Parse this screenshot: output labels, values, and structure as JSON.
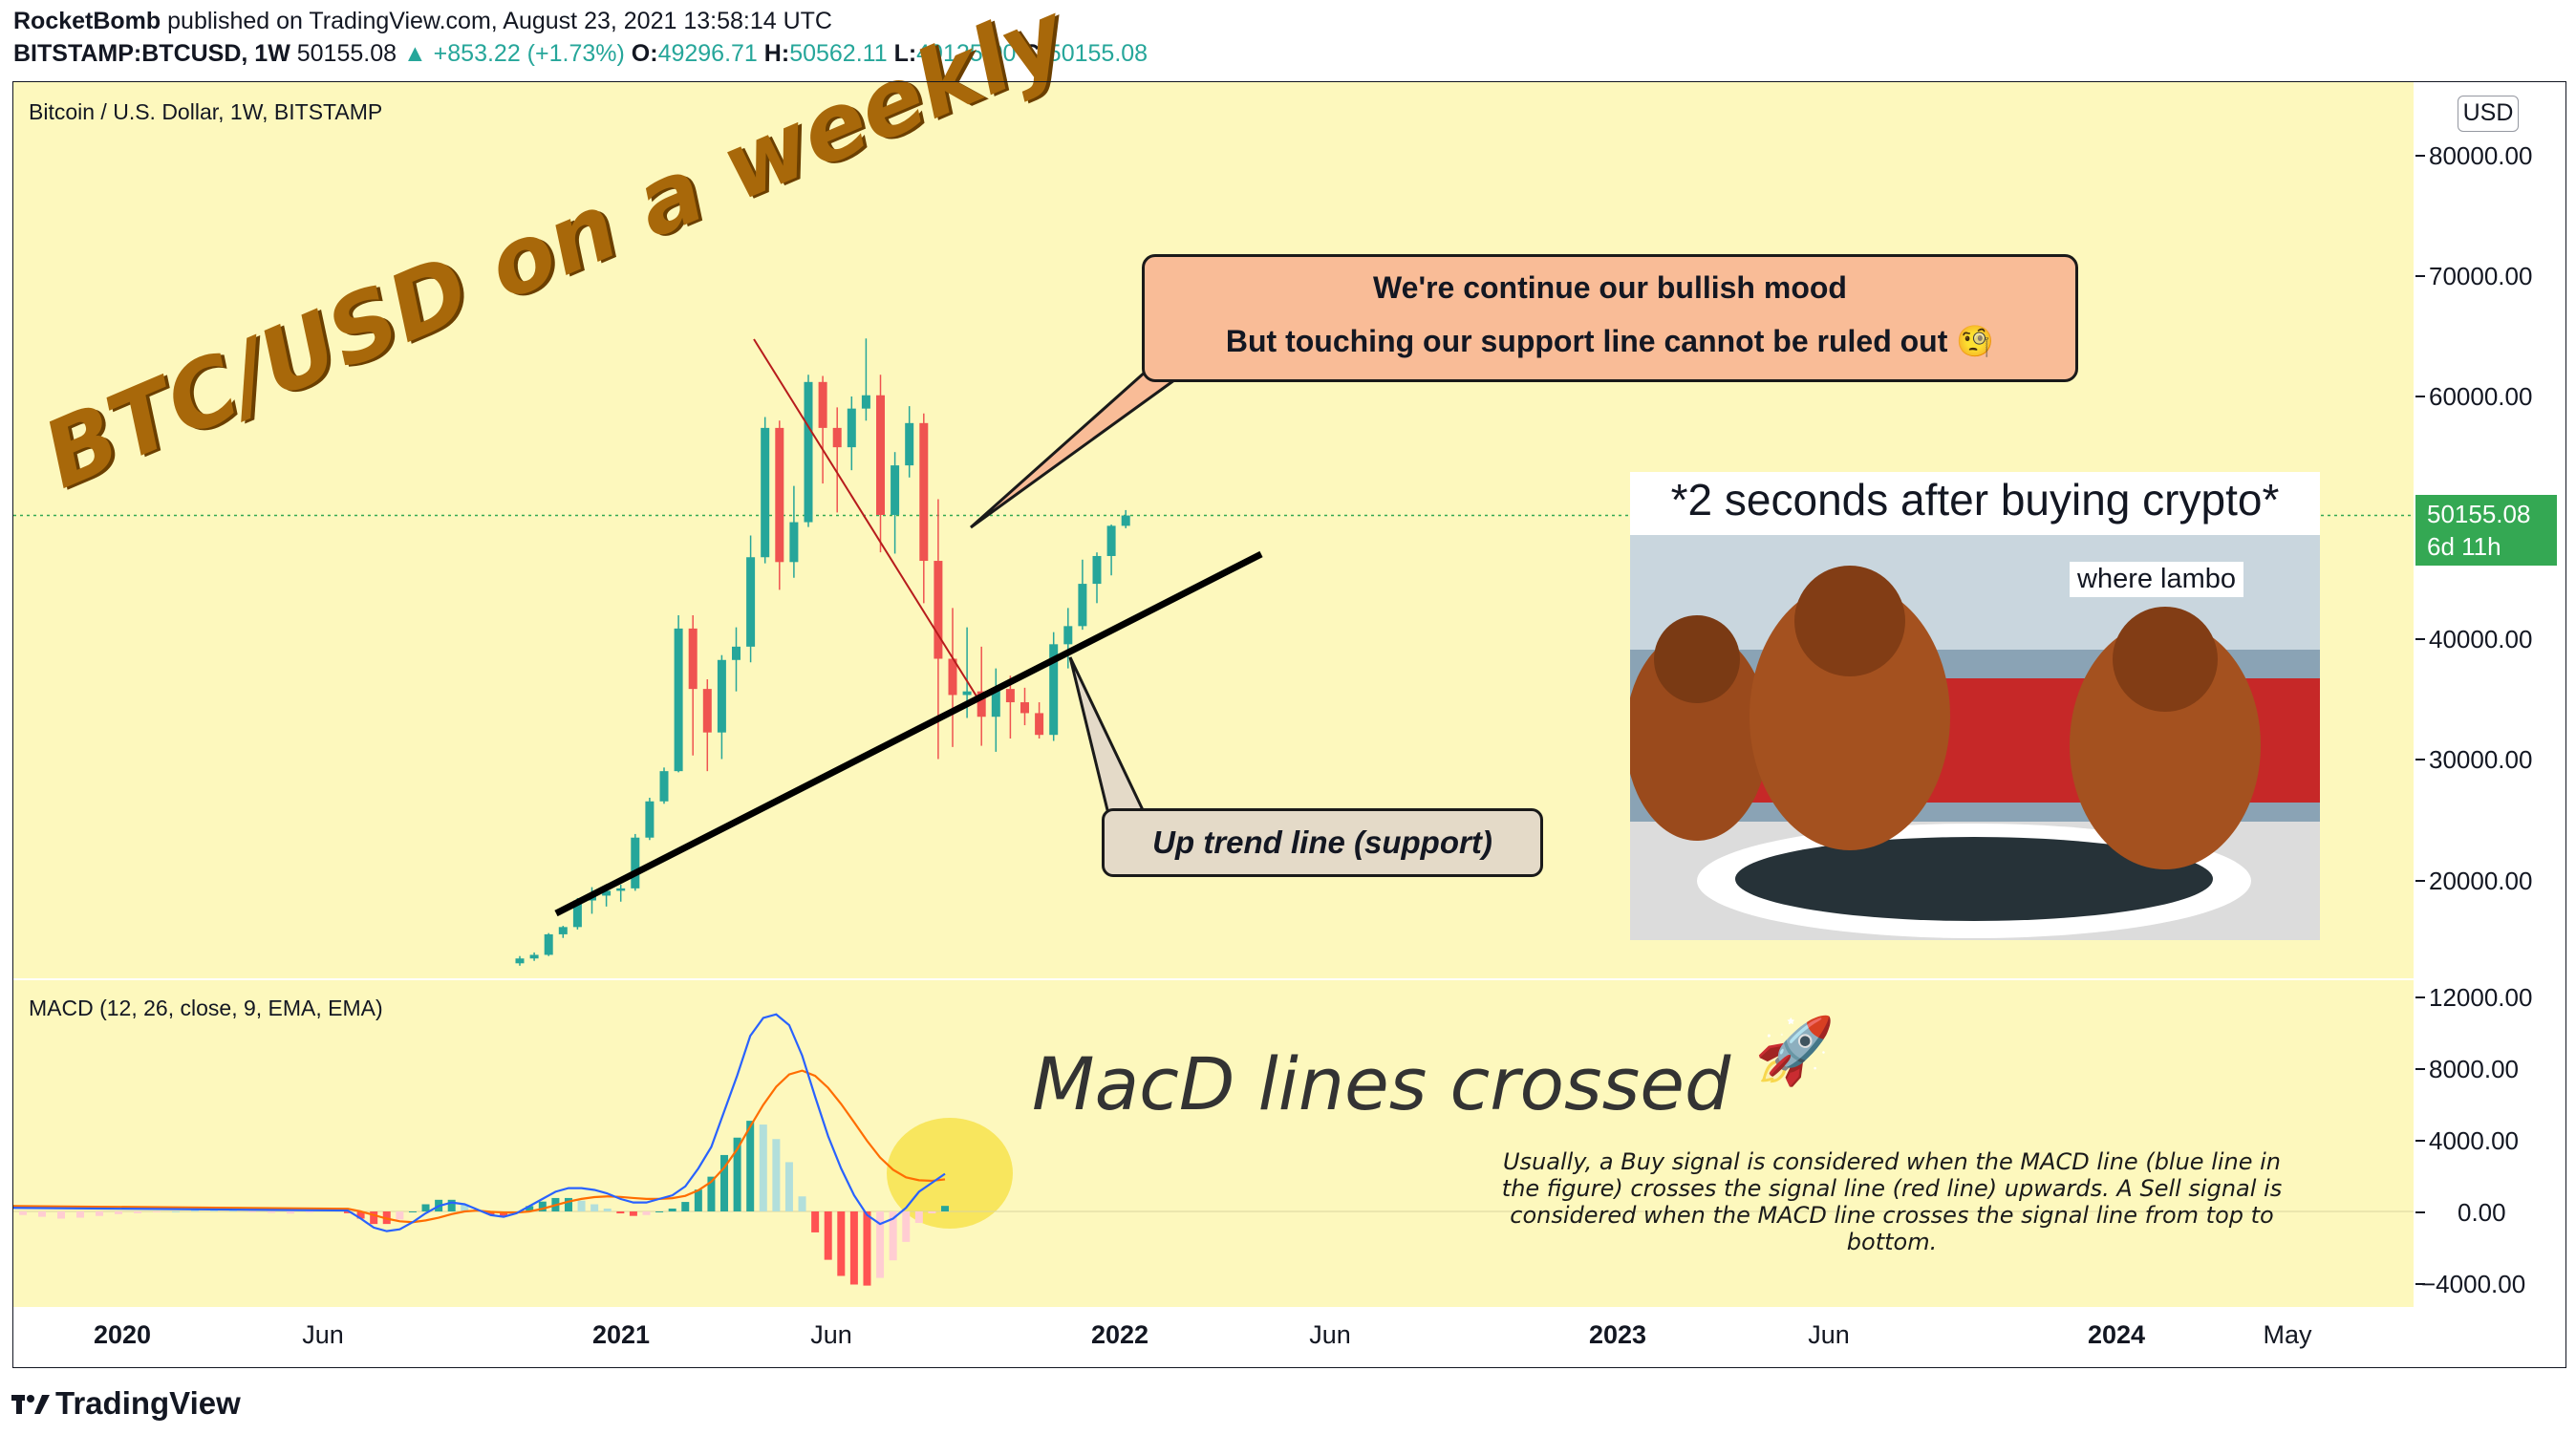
{
  "header": {
    "author": "RocketBomb",
    "published_text": " published on TradingView.com, August 23, 2021 13:58:14 UTC",
    "symbol": "BITSTAMP:BTCUSD, 1W",
    "last": "50155.08",
    "change": "▲ +853.22 (+1.73%)",
    "o_label": "O:",
    "o_value": "49296.71",
    "h_label": "H:",
    "h_value": "50562.11",
    "l_label": "L:",
    "l_value": "49125.00",
    "c_label": "C:",
    "c_value": "50155.08"
  },
  "main_legend": "Bitcoin / U.S. Dollar, 1W, BITSTAMP",
  "macd_legend": "MACD (12, 26, close, 9, EMA, EMA)",
  "annotations": {
    "weekly_title": "BTC/USD on a weekly",
    "callout_line1": "We're continue our bullish mood",
    "callout_line2": "But touching our support line cannot be ruled out 🧐",
    "support_label": "Up trend line (support)",
    "meme_title": "*2 seconds after buying crypto*",
    "meme_caption": "where lambo",
    "macd_headline": "MacD lines crossed",
    "rocket": "🚀",
    "macd_note": "Usually, a Buy signal is considered when the MACD line (blue line in the figure) crosses the signal line (red line) upwards. A Sell signal is considered when the MACD line crosses the signal line from top to bottom."
  },
  "price_axis": {
    "currency": "USD",
    "labels": [
      "80000.00",
      "70000.00",
      "60000.00",
      "40000.00",
      "30000.00",
      "20000.00"
    ],
    "current_price": "50155.08",
    "countdown": "6d 11h"
  },
  "macd_axis": {
    "labels": [
      "12000.00",
      "8000.00",
      "4000.00",
      "0.00",
      "−4000.00"
    ]
  },
  "time_axis": {
    "labels": [
      {
        "text": "2020",
        "bold": true
      },
      {
        "text": "Jun",
        "bold": false
      },
      {
        "text": "2021",
        "bold": true
      },
      {
        "text": "Jun",
        "bold": false
      },
      {
        "text": "2022",
        "bold": true
      },
      {
        "text": "Jun",
        "bold": false
      },
      {
        "text": "2023",
        "bold": true
      },
      {
        "text": "Jun",
        "bold": false
      },
      {
        "text": "2024",
        "bold": true
      },
      {
        "text": "May",
        "bold": false
      }
    ]
  },
  "footer": {
    "brand": "TradingView"
  },
  "colors": {
    "up": "#26a69a",
    "down": "#ef5350",
    "macd": "#2962ff",
    "signal": "#ff6d00",
    "chart_bg": "#fdf8bd",
    "trend_line": "#000000",
    "down_trend": "#b71c1c",
    "highlight": "#f7e34e"
  },
  "chart_data": [
    {
      "type": "candlestick",
      "title": "Bitcoin / U.S. Dollar, 1W, BITSTAMP",
      "ylim": [
        14000,
        87000
      ],
      "note": "weekly OHLC approximations, Nov 2020 – Aug 2021",
      "candles": [
        [
          13100,
          13700,
          12900,
          13500
        ],
        [
          13500,
          14000,
          13300,
          13800
        ],
        [
          13800,
          15600,
          13700,
          15500
        ],
        [
          15500,
          16200,
          15200,
          16100
        ],
        [
          16100,
          18500,
          15900,
          18300
        ],
        [
          18300,
          19400,
          17200,
          18700
        ],
        [
          18700,
          19200,
          17800,
          19100
        ],
        [
          19100,
          19600,
          18200,
          19300
        ],
        [
          19300,
          23800,
          19100,
          23500
        ],
        [
          23500,
          26800,
          23300,
          26500
        ],
        [
          26500,
          29300,
          26300,
          29000
        ],
        [
          29000,
          41900,
          28900,
          40800
        ],
        [
          40800,
          41900,
          30300,
          35800
        ],
        [
          35800,
          36600,
          29000,
          32200
        ],
        [
          32200,
          38600,
          30000,
          38200
        ],
        [
          38200,
          40900,
          35600,
          39300
        ],
        [
          39300,
          48500,
          38000,
          46700
        ],
        [
          46700,
          58300,
          46200,
          57400
        ],
        [
          57400,
          58000,
          44000,
          46300
        ],
        [
          46300,
          52600,
          45000,
          49600
        ],
        [
          49600,
          61800,
          49200,
          61200
        ],
        [
          61200,
          61700,
          52800,
          57400
        ],
        [
          57400,
          59100,
          50400,
          55800
        ],
        [
          55800,
          60000,
          53900,
          59000
        ],
        [
          59000,
          64800,
          58000,
          60100
        ],
        [
          60100,
          61800,
          47100,
          50200
        ],
        [
          50200,
          55400,
          47000,
          54300
        ],
        [
          54300,
          59200,
          53300,
          57800
        ],
        [
          57800,
          58600,
          42900,
          46400
        ],
        [
          46400,
          51500,
          30000,
          38300
        ],
        [
          38300,
          42500,
          31000,
          35300
        ],
        [
          35300,
          40900,
          33400,
          35600
        ],
        [
          35600,
          39300,
          31100,
          33500
        ],
        [
          33500,
          37500,
          30600,
          35800
        ],
        [
          35800,
          36900,
          31700,
          34700
        ],
        [
          34700,
          35900,
          32800,
          33800
        ],
        [
          33800,
          34700,
          31700,
          32000
        ],
        [
          32000,
          40500,
          31500,
          39500
        ],
        [
          39500,
          42500,
          37500,
          41000
        ],
        [
          41000,
          46500,
          40700,
          44500
        ],
        [
          44500,
          47100,
          42900,
          46800
        ],
        [
          46800,
          49400,
          45200,
          49300
        ],
        [
          49300,
          50600,
          49100,
          50155
        ]
      ],
      "last_price": 50155.08
    },
    {
      "type": "line",
      "title": "MACD (12, 26, close, 9, EMA, EMA)",
      "ylim": [
        -6000,
        13500
      ],
      "series": [
        {
          "name": "MACD",
          "values": [
            50,
            -400,
            -900,
            -1100,
            -1000,
            -600,
            -100,
            300,
            500,
            400,
            100,
            -200,
            -300,
            -100,
            300,
            700,
            1100,
            1300,
            1300,
            1200,
            1000,
            700,
            500,
            500,
            700,
            900,
            1400,
            2400,
            3600,
            5600,
            7600,
            9800,
            10800,
            11000,
            10400,
            8700,
            6400,
            4200,
            2400,
            900,
            -200,
            -700,
            -400,
            200,
            1100,
            1600,
            2100
          ]
        },
        {
          "name": "Signal",
          "values": [
            150,
            0,
            -200,
            -400,
            -550,
            -600,
            -500,
            -350,
            -150,
            0,
            50,
            -20,
            -60,
            -60,
            0,
            150,
            350,
            550,
            700,
            800,
            840,
            810,
            750,
            700,
            700,
            740,
            870,
            1180,
            1660,
            2450,
            3480,
            4740,
            5950,
            6960,
            7650,
            7860,
            7570,
            6900,
            6000,
            4980,
            3940,
            3010,
            2330,
            1900,
            1740,
            1710,
            1790
          ]
        },
        {
          "name": "Histogram",
          "values": [
            -100,
            -400,
            -700,
            -700,
            -450,
            0,
            400,
            650,
            650,
            400,
            50,
            -180,
            -240,
            -40,
            300,
            550,
            750,
            750,
            600,
            400,
            160,
            -110,
            -250,
            -200,
            0,
            160,
            530,
            1220,
            1940,
            3150,
            4120,
            5060,
            4850,
            4040,
            2750,
            840,
            -1170,
            -2700,
            -3600,
            -4080,
            -4140,
            -3710,
            -2730,
            -1700,
            -640,
            -110,
            310
          ]
        }
      ]
    }
  ]
}
